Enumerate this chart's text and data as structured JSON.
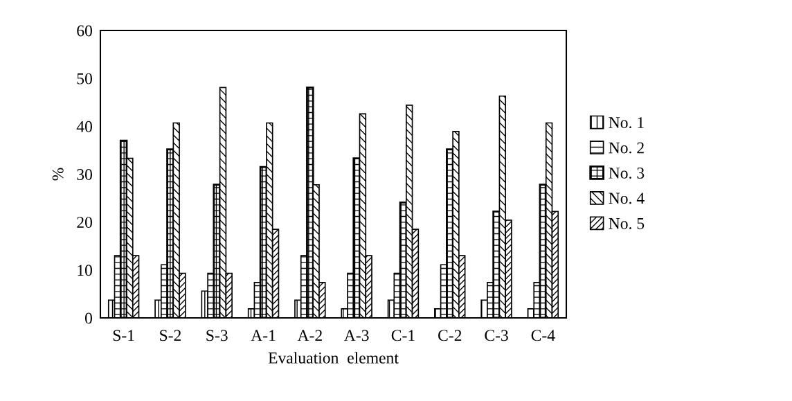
{
  "chart_data": {
    "type": "bar",
    "xlabel": "Evaluation  element",
    "ylabel": "%",
    "categories": [
      "S-1",
      "S-2",
      "S-3",
      "A-1",
      "A-2",
      "A-3",
      "C-1",
      "C-2",
      "C-3",
      "C-4"
    ],
    "series": [
      {
        "name": "No. 1",
        "color": "#000000",
        "values": [
          3.7,
          3.7,
          5.6,
          1.9,
          3.7,
          1.9,
          3.7,
          1.9,
          3.7,
          1.9
        ]
      },
      {
        "name": "No. 2",
        "color": "#000000",
        "values": [
          13.0,
          11.1,
          9.3,
          7.4,
          13.0,
          9.3,
          9.3,
          11.1,
          7.4,
          7.4
        ]
      },
      {
        "name": "No. 3",
        "color": "#000000",
        "values": [
          37.0,
          35.2,
          27.8,
          31.5,
          48.1,
          33.3,
          24.1,
          35.2,
          22.2,
          27.8
        ]
      },
      {
        "name": "No. 4",
        "color": "#000000",
        "values": [
          33.3,
          40.7,
          48.1,
          40.7,
          27.8,
          42.6,
          44.4,
          38.9,
          46.3,
          40.7
        ]
      },
      {
        "name": "No. 5",
        "color": "#000000",
        "values": [
          13.0,
          9.3,
          9.3,
          18.5,
          7.4,
          13.0,
          18.5,
          13.0,
          20.4,
          22.2
        ]
      }
    ],
    "ylim": [
      0,
      60
    ],
    "yticks": [
      0,
      10,
      20,
      30,
      40,
      50,
      60
    ],
    "grid": false,
    "legend": "right"
  }
}
